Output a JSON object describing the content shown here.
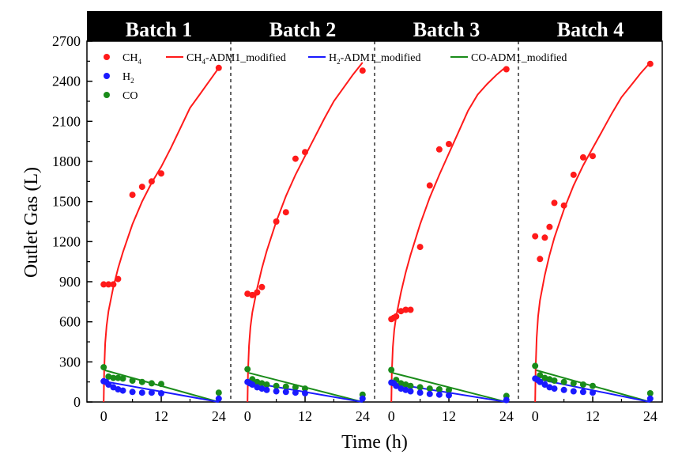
{
  "chart_data": {
    "type": "scatter",
    "title": "",
    "xlabel": "Time (h)",
    "ylabel": "Outlet Gas (L)",
    "ylim": [
      0,
      2700
    ],
    "yticks": [
      0,
      300,
      600,
      900,
      1200,
      1500,
      1800,
      2100,
      2400,
      2700
    ],
    "xlim": [
      -3.5,
      26.5
    ],
    "xticks": [
      0,
      12,
      24
    ],
    "panel_titles": [
      "Batch 1",
      "Batch 2",
      "Batch 3",
      "Batch 4"
    ],
    "legend": {
      "placement": "top",
      "entries": [
        {
          "label": "CH",
          "sub": "4",
          "rest": "",
          "kind": "marker",
          "color": "#ff1a1a"
        },
        {
          "label": "H",
          "sub": "2",
          "rest": "",
          "kind": "marker",
          "color": "#1a1aff"
        },
        {
          "label": "CO",
          "sub": "",
          "rest": "",
          "kind": "marker",
          "color": "#1a8c1a"
        },
        {
          "label": "CH",
          "sub": "4",
          "rest": "-ADM1_modified",
          "kind": "line",
          "color": "#ff1a1a"
        },
        {
          "label": "H",
          "sub": "2",
          "rest": "-ADM1_modified",
          "kind": "line",
          "color": "#1a1aff"
        },
        {
          "label": "CO",
          "sub": "",
          "rest": "-ADM1_modified",
          "kind": "line",
          "color": "#1a8c1a"
        }
      ]
    },
    "colors": {
      "CH4": "#ff1a1a",
      "H2": "#1a1aff",
      "CO": "#1a8c1a"
    },
    "panels": [
      {
        "name": "Batch 1",
        "measured": {
          "CH4": {
            "x": [
              0,
              1,
              2,
              3,
              6,
              8,
              10,
              12,
              24
            ],
            "y": [
              880,
              880,
              880,
              920,
              1550,
              1610,
              1650,
              1710,
              2500
            ]
          },
          "H2": {
            "x": [
              0,
              0.5,
              1,
              2,
              3,
              4,
              6,
              8,
              10,
              12,
              24
            ],
            "y": [
              155,
              150,
              130,
              110,
              95,
              85,
              75,
              70,
              70,
              65,
              25
            ]
          },
          "CO": {
            "x": [
              0,
              1,
              2,
              3,
              4,
              6,
              8,
              10,
              12,
              24
            ],
            "y": [
              260,
              190,
              180,
              180,
              175,
              160,
              150,
              140,
              135,
              70
            ]
          }
        },
        "model": {
          "CH4": {
            "x": [
              0,
              0.1,
              0.3,
              0.6,
              1,
              2,
              3,
              4,
              6,
              8,
              10,
              12,
              14,
              16,
              18,
              20,
              22,
              24
            ],
            "y": [
              0,
              230,
              440,
              570,
              680,
              860,
              1000,
              1120,
              1330,
              1500,
              1640,
              1760,
              1900,
              2050,
              2200,
              2300,
              2400,
              2500
            ]
          },
          "H2": {
            "x": [
              0,
              24
            ],
            "y": [
              155,
              0
            ]
          },
          "CO": {
            "x": [
              0,
              24
            ],
            "y": [
              240,
              0
            ]
          }
        }
      },
      {
        "name": "Batch 2",
        "measured": {
          "CH4": {
            "x": [
              0,
              1,
              2,
              3,
              6,
              8,
              10,
              12,
              24
            ],
            "y": [
              810,
              800,
              820,
              860,
              1350,
              1420,
              1820,
              1870,
              2480
            ]
          },
          "H2": {
            "x": [
              0,
              0.5,
              1,
              2,
              3,
              4,
              6,
              8,
              10,
              12,
              24
            ],
            "y": [
              150,
              140,
              130,
              110,
              100,
              90,
              80,
              75,
              70,
              65,
              25
            ]
          },
          "CO": {
            "x": [
              0,
              1,
              2,
              3,
              4,
              6,
              8,
              10,
              12,
              24
            ],
            "y": [
              245,
              170,
              150,
              140,
              130,
              120,
              115,
              110,
              100,
              55
            ]
          }
        },
        "model": {
          "CH4": {
            "x": [
              0,
              0.1,
              0.3,
              0.6,
              1,
              2,
              3,
              4,
              6,
              8,
              10,
              12,
              14,
              16,
              18,
              20,
              22,
              24
            ],
            "y": [
              0,
              220,
              420,
              560,
              670,
              850,
              1000,
              1130,
              1350,
              1540,
              1700,
              1840,
              1980,
              2120,
              2250,
              2350,
              2450,
              2540
            ]
          },
          "H2": {
            "x": [
              0,
              24
            ],
            "y": [
              150,
              0
            ]
          },
          "CO": {
            "x": [
              0,
              24
            ],
            "y": [
              220,
              0
            ]
          }
        }
      },
      {
        "name": "Batch 3",
        "measured": {
          "CH4": {
            "x": [
              0,
              0.5,
              1,
              2,
              3,
              4,
              6,
              8,
              10,
              12,
              24
            ],
            "y": [
              620,
              630,
              640,
              680,
              690,
              690,
              1160,
              1620,
              1890,
              1930,
              2490
            ]
          },
          "H2": {
            "x": [
              0,
              0.5,
              1,
              2,
              3,
              4,
              6,
              8,
              10,
              12,
              24
            ],
            "y": [
              145,
              140,
              120,
              100,
              90,
              80,
              70,
              60,
              55,
              50,
              15
            ]
          },
          "CO": {
            "x": [
              0,
              1,
              2,
              3,
              4,
              6,
              8,
              10,
              12,
              24
            ],
            "y": [
              240,
              165,
              140,
              130,
              120,
              110,
              100,
              95,
              90,
              45
            ]
          }
        },
        "model": {
          "CH4": {
            "x": [
              0,
              0.1,
              0.3,
              0.6,
              1,
              2,
              3,
              4,
              6,
              8,
              10,
              12,
              14,
              16,
              18,
              20,
              22,
              24
            ],
            "y": [
              0,
              220,
              410,
              540,
              640,
              820,
              970,
              1100,
              1330,
              1530,
              1700,
              1860,
              2020,
              2180,
              2300,
              2380,
              2450,
              2510
            ]
          },
          "H2": {
            "x": [
              0,
              24
            ],
            "y": [
              140,
              0
            ]
          },
          "CO": {
            "x": [
              0,
              24
            ],
            "y": [
              220,
              0
            ]
          }
        }
      },
      {
        "name": "Batch 4",
        "measured": {
          "CH4": {
            "x": [
              0,
              1,
              2,
              3,
              4,
              6,
              8,
              10,
              12,
              24
            ],
            "y": [
              1240,
              1070,
              1230,
              1310,
              1490,
              1470,
              1700,
              1830,
              1840,
              2530
            ]
          },
          "H2": {
            "x": [
              0,
              0.5,
              1,
              2,
              3,
              4,
              6,
              8,
              10,
              12,
              24
            ],
            "y": [
              175,
              165,
              150,
              130,
              110,
              100,
              90,
              80,
              75,
              70,
              25
            ]
          },
          "CO": {
            "x": [
              0,
              1,
              2,
              3,
              4,
              6,
              8,
              10,
              12,
              24
            ],
            "y": [
              270,
              200,
              180,
              170,
              160,
              150,
              140,
              130,
              120,
              65
            ]
          }
        },
        "model": {
          "CH4": {
            "x": [
              0,
              0.1,
              0.3,
              0.6,
              1,
              2,
              3,
              4,
              6,
              8,
              10,
              12,
              14,
              16,
              18,
              20,
              22,
              24
            ],
            "y": [
              0,
              250,
              480,
              640,
              760,
              950,
              1100,
              1230,
              1440,
              1620,
              1770,
              1900,
              2030,
              2160,
              2280,
              2370,
              2460,
              2540
            ]
          },
          "H2": {
            "x": [
              0,
              24
            ],
            "y": [
              175,
              0
            ]
          },
          "CO": {
            "x": [
              0,
              24
            ],
            "y": [
              240,
              0
            ]
          }
        }
      }
    ]
  }
}
